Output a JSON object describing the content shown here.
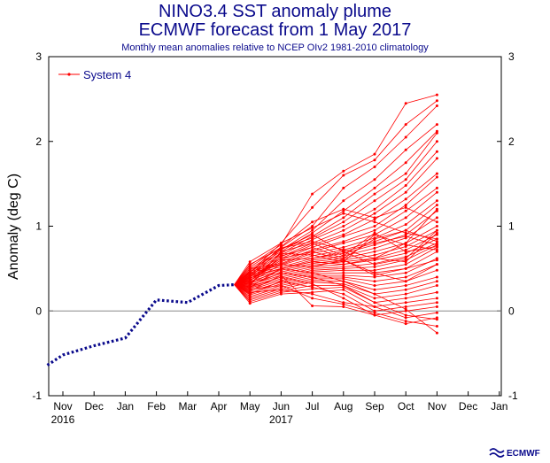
{
  "header": {
    "title": "NINO3.4 SST anomaly plume",
    "subtitle": "ECMWF forecast from 1 May 2017",
    "note": "Monthly mean anomalies relative to NCEP OIv2 1981-2010 climatology"
  },
  "logo": {
    "text": "ECMWF",
    "color": "#0a0a8c"
  },
  "colors": {
    "observed": "#0a0a8c",
    "forecast": "#ff0000",
    "zero_line": "#888888"
  },
  "chart_data": {
    "type": "line",
    "ylabel": "Anomaly (deg C)",
    "ylim": [
      -1,
      3
    ],
    "yticks": [
      -1,
      0,
      1,
      2,
      3
    ],
    "x_months": [
      "Nov",
      "Dec",
      "Jan",
      "Feb",
      "Mar",
      "Apr",
      "May",
      "Jun",
      "Jul",
      "Aug",
      "Sep",
      "Oct",
      "Nov",
      "Dec",
      "Jan"
    ],
    "year_labels": [
      {
        "label": "2016",
        "month_index": 0
      },
      {
        "label": "2017",
        "month_index": 7
      }
    ],
    "legend": [
      {
        "label": "System 4",
        "position": "top-left"
      }
    ],
    "observed": {
      "x": [
        -0.5,
        0,
        1,
        2,
        3,
        4,
        5,
        5.5
      ],
      "values": [
        -0.64,
        -0.52,
        -0.41,
        -0.32,
        0.13,
        0.1,
        0.3,
        0.31
      ]
    },
    "forecast_start": {
      "x": 5.5,
      "value": 0.31
    },
    "forecast_x": [
      6,
      7,
      8,
      9,
      10,
      11,
      12
    ],
    "ensemble": [
      [
        0.54,
        0.78,
        1.38,
        1.65,
        1.85,
        2.45,
        2.55
      ],
      [
        0.58,
        0.8,
        1.22,
        1.6,
        1.78,
        2.2,
        2.48
      ],
      [
        0.52,
        0.75,
        1.0,
        1.45,
        1.7,
        2.05,
        2.42
      ],
      [
        0.5,
        0.72,
        0.95,
        1.3,
        1.55,
        1.9,
        2.2
      ],
      [
        0.48,
        0.7,
        0.92,
        1.18,
        1.45,
        1.75,
        2.12
      ],
      [
        0.46,
        0.68,
        0.88,
        1.1,
        1.38,
        1.62,
        2.1
      ],
      [
        0.55,
        0.74,
        0.86,
        1.05,
        1.3,
        1.55,
        2.0
      ],
      [
        0.44,
        0.66,
        0.84,
        1.0,
        1.2,
        1.48,
        1.88
      ],
      [
        0.42,
        0.64,
        0.8,
        0.95,
        1.15,
        1.4,
        1.8
      ],
      [
        0.4,
        0.62,
        0.78,
        0.9,
        1.08,
        1.32,
        1.62
      ],
      [
        0.38,
        0.6,
        0.75,
        0.88,
        1.0,
        1.25,
        1.58
      ],
      [
        0.36,
        0.58,
        0.72,
        0.82,
        0.95,
        1.18,
        1.45
      ],
      [
        0.5,
        0.56,
        0.7,
        0.8,
        0.9,
        1.1,
        1.4
      ],
      [
        0.47,
        0.55,
        0.68,
        0.75,
        0.86,
        1.02,
        1.3
      ],
      [
        0.45,
        0.54,
        0.65,
        0.72,
        0.82,
        0.95,
        1.25
      ],
      [
        0.43,
        0.52,
        0.62,
        0.68,
        0.78,
        0.9,
        1.18
      ],
      [
        0.41,
        0.5,
        0.6,
        0.65,
        0.74,
        0.86,
        1.1
      ],
      [
        0.39,
        0.5,
        0.58,
        0.62,
        0.7,
        0.8,
        1.0
      ],
      [
        0.37,
        0.48,
        0.56,
        0.6,
        0.66,
        0.76,
        0.95
      ],
      [
        0.35,
        0.46,
        0.54,
        0.58,
        0.62,
        0.72,
        0.9
      ],
      [
        0.33,
        0.44,
        0.52,
        0.55,
        0.6,
        0.68,
        0.85
      ],
      [
        0.31,
        0.42,
        0.5,
        0.52,
        0.56,
        0.64,
        0.8
      ],
      [
        0.29,
        0.4,
        0.48,
        0.5,
        0.52,
        0.6,
        0.78
      ],
      [
        0.27,
        0.38,
        0.46,
        0.48,
        0.48,
        0.55,
        0.75
      ],
      [
        0.25,
        0.36,
        0.44,
        0.45,
        0.45,
        0.5,
        0.7
      ],
      [
        0.23,
        0.34,
        0.42,
        0.42,
        0.4,
        0.45,
        0.62
      ],
      [
        0.21,
        0.32,
        0.4,
        0.4,
        0.35,
        0.4,
        0.55
      ],
      [
        0.19,
        0.3,
        0.38,
        0.38,
        0.3,
        0.35,
        0.48
      ],
      [
        0.17,
        0.28,
        0.36,
        0.35,
        0.25,
        0.3,
        0.4
      ],
      [
        0.15,
        0.26,
        0.34,
        0.32,
        0.2,
        0.25,
        0.35
      ],
      [
        0.13,
        0.24,
        0.3,
        0.3,
        0.15,
        0.2,
        0.3
      ],
      [
        0.11,
        0.22,
        0.26,
        0.28,
        0.1,
        0.15,
        0.22
      ],
      [
        0.09,
        0.2,
        0.22,
        0.25,
        0.05,
        0.1,
        0.15
      ],
      [
        0.2,
        0.35,
        0.28,
        0.2,
        0.0,
        0.05,
        0.1
      ],
      [
        0.28,
        0.4,
        0.32,
        0.15,
        -0.05,
        0.0,
        0.05
      ],
      [
        0.22,
        0.25,
        0.2,
        0.1,
        0.05,
        -0.08,
        -0.02
      ],
      [
        0.3,
        0.45,
        0.4,
        0.3,
        0.1,
        -0.05,
        -0.1
      ],
      [
        0.26,
        0.3,
        0.15,
        0.08,
        -0.02,
        -0.12,
        -0.18
      ],
      [
        0.32,
        0.5,
        0.45,
        0.35,
        0.2,
        0.02,
        -0.26
      ],
      [
        0.24,
        0.42,
        0.06,
        0.05,
        -0.05,
        -0.15,
        -0.08
      ],
      [
        0.34,
        0.55,
        0.52,
        0.6,
        0.45,
        0.35,
        0.55
      ],
      [
        0.36,
        0.6,
        0.62,
        0.7,
        0.55,
        0.62,
        0.95
      ],
      [
        0.28,
        0.5,
        0.58,
        0.55,
        0.62,
        0.8,
        1.2
      ],
      [
        0.32,
        0.65,
        0.75,
        0.62,
        0.85,
        0.95,
        0.82
      ],
      [
        0.3,
        0.7,
        0.8,
        0.65,
        0.92,
        0.7,
        0.76
      ],
      [
        0.4,
        0.73,
        0.9,
        0.7,
        0.8,
        0.88,
        0.78
      ],
      [
        0.35,
        0.68,
        0.66,
        0.58,
        0.9,
        0.78,
        0.72
      ],
      [
        0.45,
        0.8,
        0.98,
        1.15,
        1.05,
        0.92,
        0.85
      ],
      [
        0.42,
        0.76,
        1.05,
        1.2,
        1.1,
        1.22,
        1.05
      ],
      [
        0.38,
        0.62,
        0.7,
        0.6,
        0.42,
        0.5,
        0.6
      ],
      [
        0.46,
        0.74,
        0.82,
        0.72,
        0.62,
        0.58,
        0.92
      ]
    ]
  }
}
